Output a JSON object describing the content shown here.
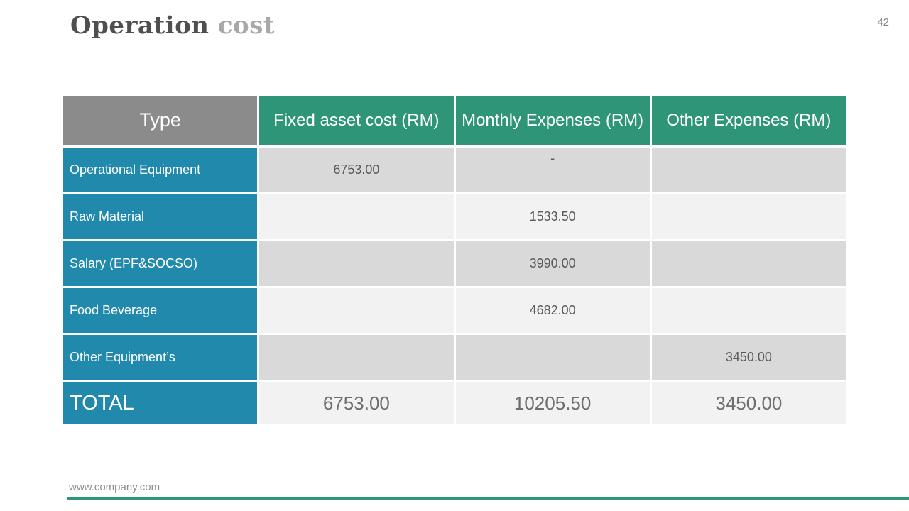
{
  "slide": {
    "title": {
      "primary": "Operation",
      "secondary": "cost"
    },
    "page_number": "42",
    "footer_url": "www.company.com"
  },
  "table": {
    "headers": [
      "Type",
      "Fixed asset cost (RM)",
      "Monthly Expenses (RM)",
      "Other Expenses (RM)"
    ],
    "rows": [
      {
        "type": "Operational Equipment",
        "fixed": "6753.00",
        "monthly": "-",
        "other": ""
      },
      {
        "type": "Raw Material",
        "fixed": "",
        "monthly": "1533.50",
        "other": ""
      },
      {
        "type": "Salary (EPF&SOCSO)",
        "fixed": "",
        "monthly": "3990.00",
        "other": ""
      },
      {
        "type": "Food Beverage",
        "fixed": "",
        "monthly": "4682.00",
        "other": ""
      },
      {
        "type": "Other Equipment’s",
        "fixed": "",
        "monthly": "",
        "other": "3450.00"
      }
    ],
    "total": {
      "label": "TOTAL",
      "fixed": "6753.00",
      "monthly": "10205.50",
      "other": "3450.00"
    }
  },
  "colors": {
    "header_teal": "#2e9578",
    "header_gray": "#8b8b8b",
    "row_label_blue": "#2189ac",
    "row_dark": "#d9d9d9",
    "row_light": "#f2f2f2",
    "value_text": "#595959",
    "accent_bar": "#2e9578"
  }
}
